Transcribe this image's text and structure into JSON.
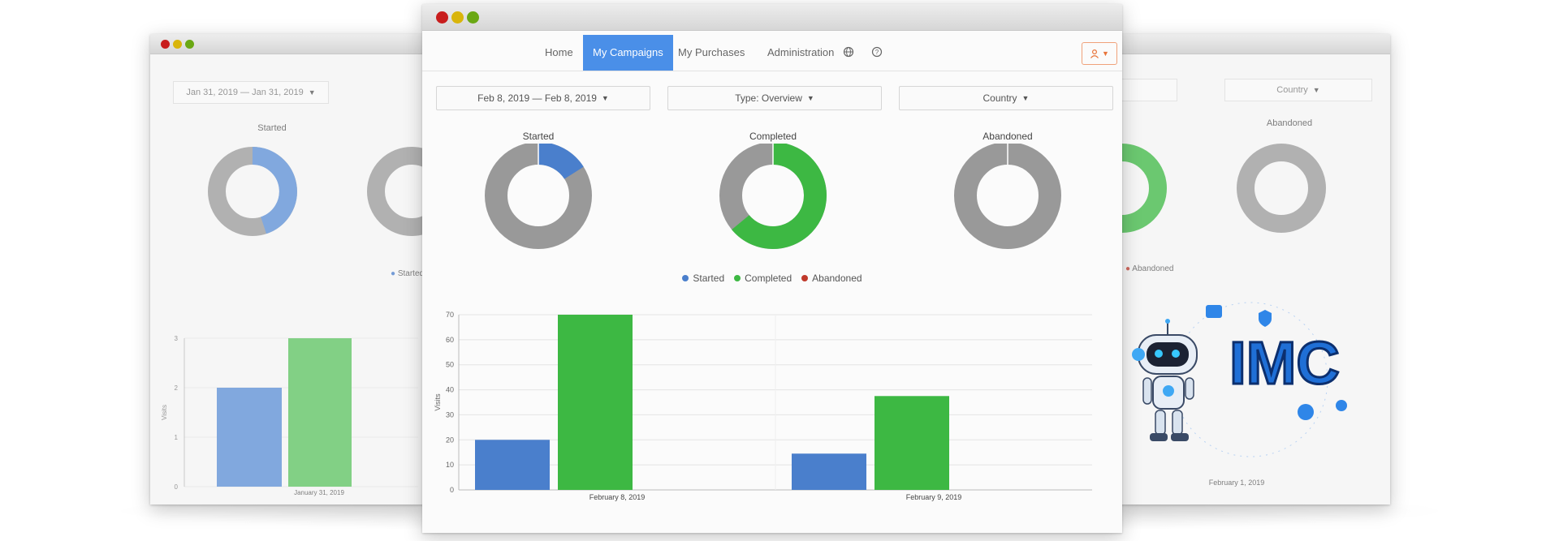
{
  "colors": {
    "started": "#4a7fcc",
    "completed": "#3db843",
    "abandoned": "#c0392b",
    "grey": "#999999",
    "accent": "#4a8fe8"
  },
  "nav": {
    "items": [
      "Home",
      "My Campaigns",
      "My Purchases",
      "Administration"
    ],
    "active": "My Campaigns",
    "icons": [
      "globe-icon",
      "help-icon"
    ],
    "user_icon": "user-icon"
  },
  "filters": {
    "date": "Feb 8, 2019 — Feb 8, 2019",
    "type": "Type: Overview",
    "country": "Country"
  },
  "donuts": [
    {
      "title": "Started",
      "started": 0.16,
      "completed": 0,
      "abandoned": 0
    },
    {
      "title": "Completed",
      "started": 0,
      "completed": 0.64,
      "abandoned": 0
    },
    {
      "title": "Abandoned",
      "started": 0,
      "completed": 0,
      "abandoned": 0
    }
  ],
  "legend": [
    "Started",
    "Completed",
    "Abandoned"
  ],
  "chart_data": {
    "type": "bar",
    "categories": [
      "February 8, 2019",
      "February 9, 2019"
    ],
    "series": [
      {
        "name": "Started",
        "values": [
          20,
          14.5
        ]
      },
      {
        "name": "Completed",
        "values": [
          70,
          37.5
        ]
      }
    ],
    "ylabel": "Visits",
    "yticks": [
      0,
      10,
      20,
      30,
      40,
      50,
      60,
      70
    ],
    "ylim": [
      0,
      70
    ],
    "grid": true
  },
  "left_window": {
    "date": "Jan 31, 2019 — Jan 31, 2019",
    "donut_title": "Started",
    "legend": "Started",
    "ylabel": "Visits",
    "yticks": [
      0,
      1,
      2,
      3
    ],
    "category": "January 31, 2019",
    "values": {
      "started": 2,
      "completed": 3
    }
  },
  "right_window": {
    "country": "Country",
    "donut_title": "Abandoned",
    "legend": "Abandoned",
    "category": "February 1, 2019"
  },
  "logo": {
    "text": "IMC"
  }
}
